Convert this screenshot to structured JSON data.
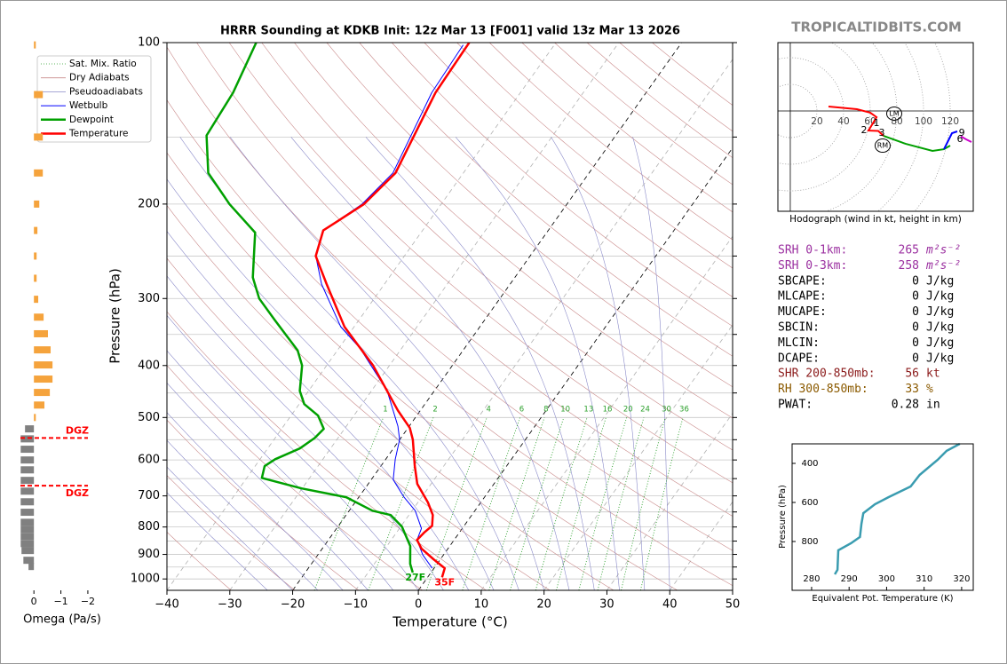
{
  "watermark": "TROPICALTIDBITS.COM",
  "chart_data": [
    {
      "type": "skewt",
      "title": "HRRR Sounding at KDKB Init: 12z Mar 13 [F001] valid 13z Mar 13 2026",
      "xlabel": "Temperature (°C)",
      "ylabel": "Pressure (hPa)",
      "xlim": [
        -40,
        50
      ],
      "ylim": [
        1050,
        100
      ],
      "log_y": true,
      "xticks": [
        {
          "value": -40,
          "label": "−40"
        },
        {
          "value": -30,
          "label": "−30"
        },
        {
          "value": -20,
          "label": "−20"
        },
        {
          "value": -10,
          "label": "−10"
        },
        0,
        10,
        20,
        30,
        40,
        50
      ],
      "yticks": [
        100,
        200,
        300,
        400,
        500,
        600,
        700,
        800,
        900,
        1000
      ],
      "yticks_minor": [
        150,
        250,
        350,
        450,
        550,
        650,
        750,
        850,
        950
      ],
      "highlight_isotherms": [
        -20,
        0
      ],
      "mixing_ratio": [
        1,
        2,
        4,
        6,
        8,
        10,
        13,
        16,
        20,
        24,
        30,
        36
      ],
      "background_lines": [
        {
          "name": "Sat. Mix. Ratio",
          "color": "#2ca02c",
          "style": "dotted"
        },
        {
          "name": "Dry Adiabats",
          "color": "#c98a8a",
          "style": "solid"
        },
        {
          "name": "Pseudoadiabats",
          "color": "#8a8ac9",
          "style": "solid"
        }
      ],
      "series": [
        {
          "name": "Wetbulb",
          "color": "#0000ff",
          "width": 1,
          "pressure": [
            955,
            902,
            846,
            805,
            746,
            704,
            653,
            598,
            550,
            519,
            446,
            371,
            339,
            282,
            250,
            224,
            200,
            175,
            124,
            101
          ],
          "values": [
            -0.3,
            -3.3,
            -5.9,
            -6.5,
            -9.5,
            -12.8,
            -16.5,
            -18.5,
            -20.0,
            -21.8,
            -27.5,
            -36.7,
            -42.1,
            -50.0,
            -54.1,
            -55.8,
            -52.6,
            -51.2,
            -54.1,
            -54.5
          ]
        },
        {
          "name": "Dewpoint",
          "color": "#00a000",
          "width": 2.5,
          "pressure": [
            973,
            937,
            868,
            799,
            760,
            746,
            704,
            678,
            648,
            616,
            598,
            571,
            546,
            525,
            496,
            472,
            446,
            400,
            375,
            329,
            300,
            274,
            226,
            200,
            175,
            149,
            124,
            100
          ],
          "values": [
            -2.9,
            -4.3,
            -6.3,
            -9.8,
            -12.9,
            -16.3,
            -22.0,
            -30.1,
            -37.6,
            -38.5,
            -37.6,
            -34.9,
            -33.7,
            -33.3,
            -35.7,
            -39.2,
            -41.4,
            -43.9,
            -46.3,
            -53.4,
            -58.3,
            -61.7,
            -66.4,
            -73.7,
            -80.6,
            -85.1,
            -85.7,
            -87.7
          ]
        },
        {
          "name": "Temperature",
          "color": "#ff0000",
          "width": 2.5,
          "pressure": [
            993,
            955,
            919,
            878,
            846,
            820,
            796,
            760,
            720,
            665,
            616,
            550,
            523,
            485,
            400,
            339,
            282,
            250,
            224,
            200,
            175,
            124,
            100
          ],
          "values": [
            2.3,
            1.7,
            -1.1,
            -4.2,
            -5.9,
            -5.6,
            -5.1,
            -6.2,
            -8.4,
            -12.2,
            -14.6,
            -17.9,
            -19.7,
            -23.6,
            -32.6,
            -41.5,
            -49.2,
            -54.1,
            -55.8,
            -52.3,
            -50.8,
            -53.5,
            -53.8
          ]
        }
      ],
      "surface_labels": [
        {
          "label": "27F",
          "color": "#00a000"
        },
        {
          "label": "35F",
          "color": "#ff0000"
        }
      ]
    },
    {
      "type": "omega_bar",
      "xlabel": "Omega (Pa/s)",
      "xlim": [
        0.5,
        -2.2
      ],
      "xticks": [
        0,
        {
          "value": -1,
          "label": "−1"
        },
        {
          "value": -2,
          "label": "−2"
        }
      ],
      "colors": {
        "negative": "#f5a33c",
        "positive": "#808080"
      },
      "pressure": [
        101,
        125,
        150,
        175,
        200,
        224,
        250,
        275,
        301,
        325,
        349,
        374,
        399,
        424,
        449,
        474,
        500,
        525,
        548,
        573,
        600,
        626,
        655,
        686,
        718,
        751,
        784,
        808,
        833,
        859,
        885,
        923,
        948
      ],
      "values": [
        -0.07,
        -0.33,
        -0.33,
        -0.33,
        -0.2,
        -0.13,
        -0.1,
        -0.1,
        -0.16,
        -0.36,
        -0.52,
        -0.62,
        -0.69,
        -0.69,
        -0.59,
        -0.39,
        -0.07,
        0.33,
        0.49,
        0.49,
        0.49,
        0.49,
        0.49,
        0.49,
        0.49,
        0.49,
        0.49,
        0.49,
        0.49,
        0.49,
        0.46,
        0.39,
        0.2
      ],
      "dgz": {
        "label": "DGZ",
        "pressures": [
          546,
          670
        ],
        "color": "#ff0000"
      }
    },
    {
      "type": "hodograph",
      "caption": "Hodograph (wind in kt, height in km)",
      "xlim": [
        -9.3,
        137.3
      ],
      "ylim": [
        -75.3,
        51.3
      ],
      "rings": [
        20,
        40,
        60,
        80,
        100,
        120
      ],
      "series": [
        {
          "color": "#ff0000",
          "u": [
            28.7,
            50,
            60,
            64.7,
            58.7,
            66,
            70
          ],
          "v": [
            3.3,
            1.3,
            -1.3,
            -4.7,
            -14.7,
            -15,
            -18.7
          ]
        },
        {
          "color": "#00a000",
          "u": [
            70,
            86.7,
            106.7,
            115.3,
            120
          ],
          "v": [
            -18.7,
            -24.7,
            -30,
            -28.7,
            -26
          ]
        },
        {
          "color": "#0000ff",
          "u": [
            115.3,
            118.7,
            121.3,
            125.3
          ],
          "v": [
            -28.7,
            -22,
            -16.7,
            -15.3
          ]
        },
        {
          "color": "#cc00cc",
          "u": [
            128,
            132,
            136
          ],
          "v": [
            -19,
            -21.3,
            -23.3
          ]
        }
      ],
      "height_labels": [
        {
          "label": "1",
          "u": 64.7,
          "v": -9.3
        },
        {
          "label": "2",
          "u": 55.3,
          "v": -14.7
        },
        {
          "label": "3",
          "u": 68.7,
          "v": -16.7
        },
        {
          "label": "6",
          "u": 127.3,
          "v": -21.3
        },
        {
          "label": "9",
          "u": 128.7,
          "v": -16.7
        }
      ],
      "storm_motion": [
        {
          "label": "LM",
          "u": 78,
          "v": -2
        },
        {
          "label": "RM",
          "u": 69.3,
          "v": -26
        }
      ]
    },
    {
      "type": "line",
      "xlabel": "Equivalent Pot. Temperature (K)",
      "ylabel": "Pressure (hPa)",
      "xlim": [
        274.8,
        323.1
      ],
      "ylim": [
        1050,
        300
      ],
      "xticks": [
        280,
        290,
        300,
        310,
        320
      ],
      "yticks": [
        400,
        600,
        800
      ],
      "color": "#3a9cb0",
      "x": [
        286.2,
        286.9,
        287.1,
        290.5,
        292.9,
        293.3,
        293.8,
        296.9,
        300.5,
        306.4,
        308.8,
        313.6,
        316,
        319.5
      ],
      "values": [
        968,
        945,
        845,
        809,
        777,
        709,
        655,
        609,
        573,
        518,
        459,
        382,
        336,
        300
      ]
    }
  ],
  "indices": [
    {
      "label": "SRH 0-1km:",
      "value": 265,
      "unit": "m²s⁻²",
      "color": "#9b30a0"
    },
    {
      "label": "SRH 0-3km:",
      "value": 258,
      "unit": "m²s⁻²",
      "color": "#9b30a0"
    },
    {
      "label": "SBCAPE:",
      "value": 0,
      "unit": "J/kg",
      "color": "#000000"
    },
    {
      "label": "MLCAPE:",
      "value": 0,
      "unit": "J/kg",
      "color": "#000000"
    },
    {
      "label": "MUCAPE:",
      "value": 0,
      "unit": "J/kg",
      "color": "#000000"
    },
    {
      "label": "SBCIN:",
      "value": 0,
      "unit": "J/kg",
      "color": "#000000"
    },
    {
      "label": "MLCIN:",
      "value": 0,
      "unit": "J/kg",
      "color": "#000000"
    },
    {
      "label": "DCAPE:",
      "value": 0,
      "unit": "J/kg",
      "color": "#000000"
    },
    {
      "label": "SHR 200-850mb:",
      "value": 56,
      "unit": "kt",
      "color": "#8b1a1a"
    },
    {
      "label": "RH 300-850mb:",
      "value": 33,
      "unit": "%",
      "color": "#8b5a00"
    },
    {
      "label": "PWAT:",
      "value": 0.28,
      "unit": "in",
      "color": "#000000"
    }
  ]
}
